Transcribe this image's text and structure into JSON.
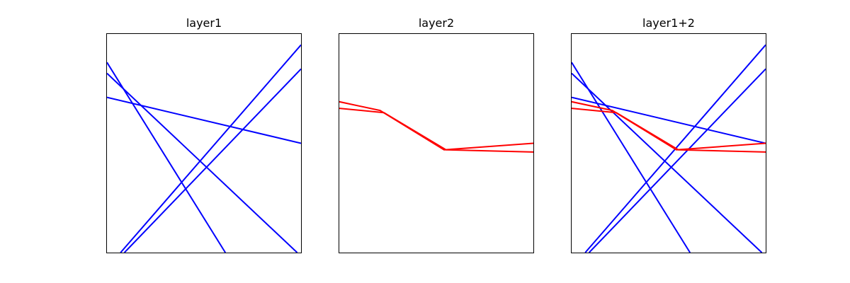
{
  "panels": [
    {
      "title": "layer1",
      "lines": [
        {
          "color": "#0000ff",
          "points": [
            [
              0.0,
              0.87
            ],
            [
              0.61,
              0.0
            ]
          ]
        },
        {
          "color": "#0000ff",
          "points": [
            [
              0.0,
              0.82
            ],
            [
              0.98,
              0.0
            ]
          ]
        },
        {
          "color": "#0000ff",
          "points": [
            [
              0.0,
              0.71
            ],
            [
              1.0,
              0.5
            ]
          ]
        },
        {
          "color": "#0000ff",
          "points": [
            [
              0.07,
              0.0
            ],
            [
              1.0,
              0.95
            ]
          ]
        },
        {
          "color": "#0000ff",
          "points": [
            [
              0.09,
              0.0
            ],
            [
              1.0,
              0.84
            ]
          ]
        }
      ]
    },
    {
      "title": "layer2",
      "lines": [
        {
          "color": "#ff0000",
          "points": [
            [
              0.0,
              0.69
            ],
            [
              0.21,
              0.65
            ],
            [
              0.54,
              0.47
            ],
            [
              1.0,
              0.5
            ]
          ]
        },
        {
          "color": "#ff0000",
          "points": [
            [
              0.0,
              0.66
            ],
            [
              0.23,
              0.64
            ],
            [
              0.55,
              0.47
            ],
            [
              1.0,
              0.46
            ]
          ]
        }
      ]
    },
    {
      "title": "layer1+2",
      "lines": [
        {
          "color": "#0000ff",
          "points": [
            [
              0.0,
              0.87
            ],
            [
              0.61,
              0.0
            ]
          ]
        },
        {
          "color": "#0000ff",
          "points": [
            [
              0.0,
              0.82
            ],
            [
              0.98,
              0.0
            ]
          ]
        },
        {
          "color": "#0000ff",
          "points": [
            [
              0.0,
              0.71
            ],
            [
              1.0,
              0.5
            ]
          ]
        },
        {
          "color": "#0000ff",
          "points": [
            [
              0.07,
              0.0
            ],
            [
              1.0,
              0.95
            ]
          ]
        },
        {
          "color": "#0000ff",
          "points": [
            [
              0.09,
              0.0
            ],
            [
              1.0,
              0.84
            ]
          ]
        },
        {
          "color": "#ff0000",
          "points": [
            [
              0.0,
              0.69
            ],
            [
              0.21,
              0.65
            ],
            [
              0.54,
              0.47
            ],
            [
              1.0,
              0.5
            ]
          ]
        },
        {
          "color": "#ff0000",
          "points": [
            [
              0.0,
              0.66
            ],
            [
              0.23,
              0.64
            ],
            [
              0.55,
              0.47
            ],
            [
              1.0,
              0.46
            ]
          ]
        }
      ]
    }
  ]
}
